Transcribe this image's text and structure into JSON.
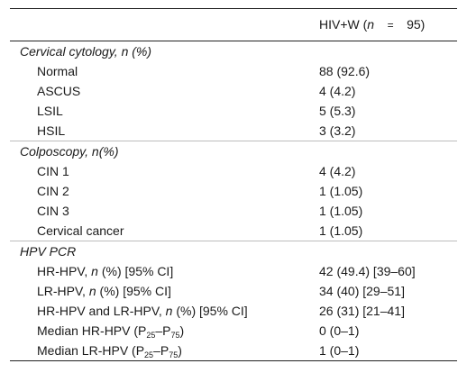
{
  "header": {
    "group_label": "HIV+W (",
    "n_symbol": "n",
    "equals": "=",
    "n_value": "95)"
  },
  "sections": [
    {
      "title": "Cervical cytology, ",
      "title_n": "n",
      "title_suffix": " (%)",
      "rows": [
        {
          "label": "Normal",
          "value": "88 (92.6)"
        },
        {
          "label": "ASCUS",
          "value": "4 (4.2)"
        },
        {
          "label": "LSIL",
          "value": "5 (5.3)"
        },
        {
          "label": "HSIL",
          "value": "3 (3.2)"
        }
      ]
    },
    {
      "title": "Colposcopy, ",
      "title_n": "n",
      "title_suffix": "(%)",
      "rows": [
        {
          "label": "CIN 1",
          "value": "4 (4.2)"
        },
        {
          "label": "CIN 2",
          "value": "1 (1.05)"
        },
        {
          "label": "CIN 3",
          "value": "1 (1.05)"
        },
        {
          "label": "Cervical cancer",
          "value": "1 (1.05)"
        }
      ]
    },
    {
      "title": "HPV PCR",
      "rows": [
        {
          "label": "HR-HPV, ",
          "n": "n",
          "suffix": " (%) [95% CI]",
          "value": "42 (49.4) [39–60]"
        },
        {
          "label": "LR-HPV, ",
          "n": "n",
          "suffix": " (%) [95% CI]",
          "value": "34 (40) [29–51]"
        },
        {
          "label": "HR-HPV and LR-HPV, ",
          "n": "n",
          "suffix": " (%) [95% CI]",
          "value": "26 (31) [21–41]"
        },
        {
          "label": "Median HR-HPV (P",
          "sub1": "25",
          "dash": "–P",
          "sub2": "75",
          "close": ")",
          "value": "0 (0–1)"
        },
        {
          "label": "Median LR-HPV (P",
          "sub1": "25",
          "dash": "–P",
          "sub2": "75",
          "close": ")",
          "value": "1 (0–1)"
        }
      ]
    }
  ]
}
